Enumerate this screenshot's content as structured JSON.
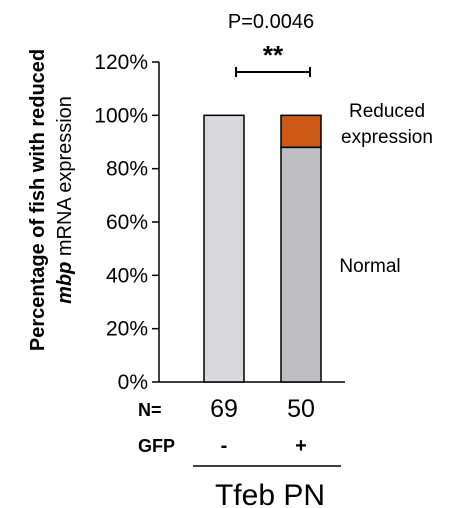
{
  "chart_data": {
    "type": "bar",
    "stacked": true,
    "ylabel_line1": "Percentage of fish with reduced",
    "ylabel_line2_italic": "mbp",
    "ylabel_line2_rest": " mRNA expression",
    "yticks": [
      "0%",
      "20%",
      "40%",
      "60%",
      "80%",
      "100%",
      "120%"
    ],
    "ylim": [
      0,
      120
    ],
    "series": [
      {
        "name": "Normal",
        "values": [
          100,
          88
        ],
        "colors": [
          "#d9d9db",
          "#bfbfc1"
        ]
      },
      {
        "name": "Reduced expression",
        "values": [
          0,
          12
        ],
        "color": "#cc5a14"
      }
    ],
    "legend": {
      "normal": "Normal",
      "reduced_line1": "Reduced",
      "reduced_line2": "expression"
    },
    "n_label": "N=",
    "n_values": [
      "69",
      "50"
    ],
    "gfp_label": "GFP",
    "gfp_values": [
      "-",
      "+"
    ],
    "group_label": "Tfeb PN",
    "pvalue": "P=0.0046",
    "significance": "**"
  }
}
